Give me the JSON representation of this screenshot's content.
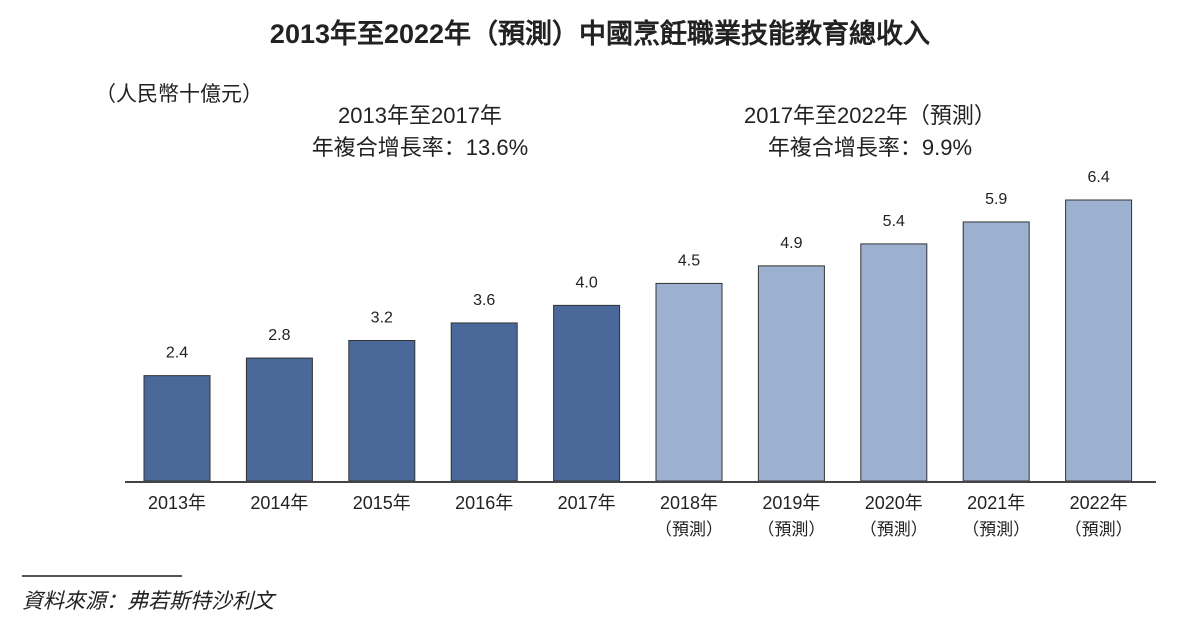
{
  "chart_data": {
    "type": "bar",
    "title": "2013年至2022年（預測）中國烹飪職業技能教育總收入",
    "unit_label": "（人民幣十億元）",
    "categories": [
      "2013年",
      "2014年",
      "2015年",
      "2016年",
      "2017年",
      "2018年",
      "2019年",
      "2020年",
      "2021年",
      "2022年"
    ],
    "category_sublabels": [
      "",
      "",
      "",
      "",
      "",
      "（預測）",
      "（預測）",
      "（預測）",
      "（預測）",
      "（預測）"
    ],
    "values": [
      2.4,
      2.8,
      3.2,
      3.6,
      4.0,
      4.5,
      4.9,
      5.4,
      5.9,
      6.4
    ],
    "value_labels": [
      "2.4",
      "2.8",
      "3.2",
      "3.6",
      "4.0",
      "4.5",
      "4.9",
      "5.4",
      "5.9",
      "6.4"
    ],
    "forecast": [
      false,
      false,
      false,
      false,
      false,
      true,
      true,
      true,
      true,
      true
    ],
    "colors": {
      "actual": "#4a6899",
      "forecast": "#9cb0d0"
    },
    "ylim": [
      0,
      6.4
    ],
    "grid": false,
    "annotations": [
      {
        "line1": "2013年至2017年",
        "line2": "年複合增長率：13.6%"
      },
      {
        "line1": "2017年至2022年（預測）",
        "line2": "年複合增長率：9.9%"
      }
    ],
    "source": "資料來源：弗若斯特沙利文"
  }
}
